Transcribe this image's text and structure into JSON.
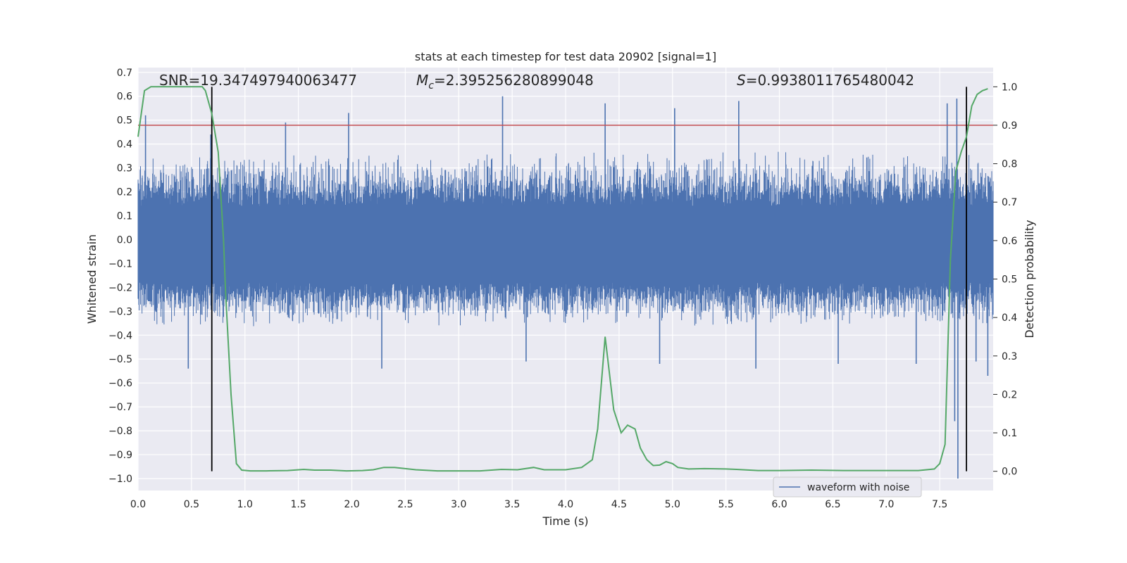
{
  "chart_data": {
    "type": "line",
    "title": "stats at each timestep for test data 20902 [signal=1]",
    "xlabel": "Time (s)",
    "ylabel_left": "Whitened strain",
    "ylabel_right": "Detection probability",
    "xlim": [
      0.0,
      8.0
    ],
    "ylim_left": [
      -1.05,
      0.72
    ],
    "ylim_right": [
      -0.05,
      1.05
    ],
    "x_ticks": [
      "0.0",
      "0.5",
      "1.0",
      "1.5",
      "2.0",
      "2.5",
      "3.0",
      "3.5",
      "4.0",
      "4.5",
      "5.0",
      "5.5",
      "6.0",
      "6.5",
      "7.0",
      "7.5"
    ],
    "x_tick_values": [
      0.0,
      0.5,
      1.0,
      1.5,
      2.0,
      2.5,
      3.0,
      3.5,
      4.0,
      4.5,
      5.0,
      5.5,
      6.0,
      6.5,
      7.0,
      7.5
    ],
    "y_left_ticks": [
      "0.7",
      "0.6",
      "0.5",
      "0.4",
      "0.3",
      "0.2",
      "0.1",
      "0.0",
      "−0.1",
      "−0.2",
      "−0.3",
      "−0.4",
      "−0.5",
      "−0.6",
      "−0.7",
      "−0.8",
      "−0.9",
      "−1.0"
    ],
    "y_left_tick_values": [
      0.7,
      0.6,
      0.5,
      0.4,
      0.3,
      0.2,
      0.1,
      0.0,
      -0.1,
      -0.2,
      -0.3,
      -0.4,
      -0.5,
      -0.6,
      -0.7,
      -0.8,
      -0.9,
      -1.0
    ],
    "y_right_ticks": [
      "1.0",
      "0.9",
      "0.8",
      "0.7",
      "0.6",
      "0.5",
      "0.4",
      "0.3",
      "0.2",
      "0.1",
      "0.0"
    ],
    "y_right_tick_values": [
      1.0,
      0.9,
      0.8,
      0.7,
      0.6,
      0.5,
      0.4,
      0.3,
      0.2,
      0.1,
      0.0
    ],
    "grid": true,
    "annotations": {
      "snr": "SNR=19.347497940063477",
      "mc_symbol": "M",
      "mc_sub": "c",
      "mc_value": "=2.395256280899048",
      "s_symbol": "S",
      "s_value": "=0.9938011765480042"
    },
    "threshold_line": {
      "value": 0.9,
      "axis": "right",
      "color": "#c44e52"
    },
    "vertical_lines": [
      {
        "x": 0.69,
        "color": "#000000"
      },
      {
        "x": 7.75,
        "color": "#000000"
      }
    ],
    "series": [
      {
        "name": "waveform with noise",
        "axis": "left",
        "color": "#4c72b0",
        "band_core": [
          -0.18,
          0.14
        ],
        "typical_extent": [
          -0.35,
          0.35
        ],
        "spikes": [
          {
            "x": 0.07,
            "y": 0.52
          },
          {
            "x": 0.47,
            "y": -0.54
          },
          {
            "x": 0.68,
            "y": 0.44
          },
          {
            "x": 1.38,
            "y": 0.49
          },
          {
            "x": 1.97,
            "y": 0.53
          },
          {
            "x": 2.28,
            "y": -0.54
          },
          {
            "x": 3.41,
            "y": 0.6
          },
          {
            "x": 3.63,
            "y": -0.51
          },
          {
            "x": 4.37,
            "y": 0.57
          },
          {
            "x": 4.88,
            "y": -0.52
          },
          {
            "x": 5.02,
            "y": 0.55
          },
          {
            "x": 5.62,
            "y": 0.58
          },
          {
            "x": 5.78,
            "y": -0.54
          },
          {
            "x": 6.55,
            "y": -0.52
          },
          {
            "x": 7.28,
            "y": -0.52
          },
          {
            "x": 7.57,
            "y": 0.57
          },
          {
            "x": 7.64,
            "y": -0.76
          },
          {
            "x": 7.66,
            "y": 0.59
          },
          {
            "x": 7.67,
            "y": -1.0
          },
          {
            "x": 7.84,
            "y": -0.51
          },
          {
            "x": 7.95,
            "y": -0.57
          }
        ]
      },
      {
        "name": "detection probability",
        "axis": "right",
        "color": "#55a868",
        "x": [
          0.0,
          0.06,
          0.12,
          0.2,
          0.3,
          0.4,
          0.5,
          0.6,
          0.63,
          0.69,
          0.75,
          0.8,
          0.82,
          0.87,
          0.92,
          0.97,
          1.05,
          1.2,
          1.4,
          1.55,
          1.65,
          1.8,
          1.95,
          2.1,
          2.2,
          2.3,
          2.4,
          2.6,
          2.8,
          3.0,
          3.2,
          3.4,
          3.55,
          3.7,
          3.8,
          4.0,
          4.15,
          4.25,
          4.3,
          4.37,
          4.45,
          4.52,
          4.58,
          4.65,
          4.7,
          4.76,
          4.82,
          4.88,
          4.94,
          5.0,
          5.05,
          5.15,
          5.3,
          5.5,
          5.6,
          5.8,
          6.0,
          6.3,
          6.6,
          7.0,
          7.3,
          7.45,
          7.5,
          7.55,
          7.6,
          7.65,
          7.7,
          7.75,
          7.8,
          7.85,
          7.9,
          7.95
        ],
        "y": [
          0.87,
          0.99,
          1.0,
          1.0,
          1.0,
          1.0,
          1.0,
          1.0,
          0.99,
          0.93,
          0.83,
          0.6,
          0.46,
          0.2,
          0.02,
          0.003,
          0.001,
          0.001,
          0.002,
          0.005,
          0.003,
          0.003,
          0.001,
          0.002,
          0.004,
          0.01,
          0.01,
          0.004,
          0.001,
          0.001,
          0.001,
          0.005,
          0.004,
          0.01,
          0.004,
          0.004,
          0.01,
          0.03,
          0.11,
          0.35,
          0.16,
          0.1,
          0.12,
          0.11,
          0.06,
          0.03,
          0.015,
          0.016,
          0.025,
          0.02,
          0.01,
          0.006,
          0.007,
          0.006,
          0.005,
          0.002,
          0.002,
          0.003,
          0.002,
          0.002,
          0.002,
          0.006,
          0.02,
          0.07,
          0.55,
          0.78,
          0.83,
          0.87,
          0.95,
          0.98,
          0.99,
          0.995
        ]
      }
    ],
    "legend": {
      "placement": "bottom-right",
      "entries": [
        "waveform with noise"
      ]
    }
  }
}
